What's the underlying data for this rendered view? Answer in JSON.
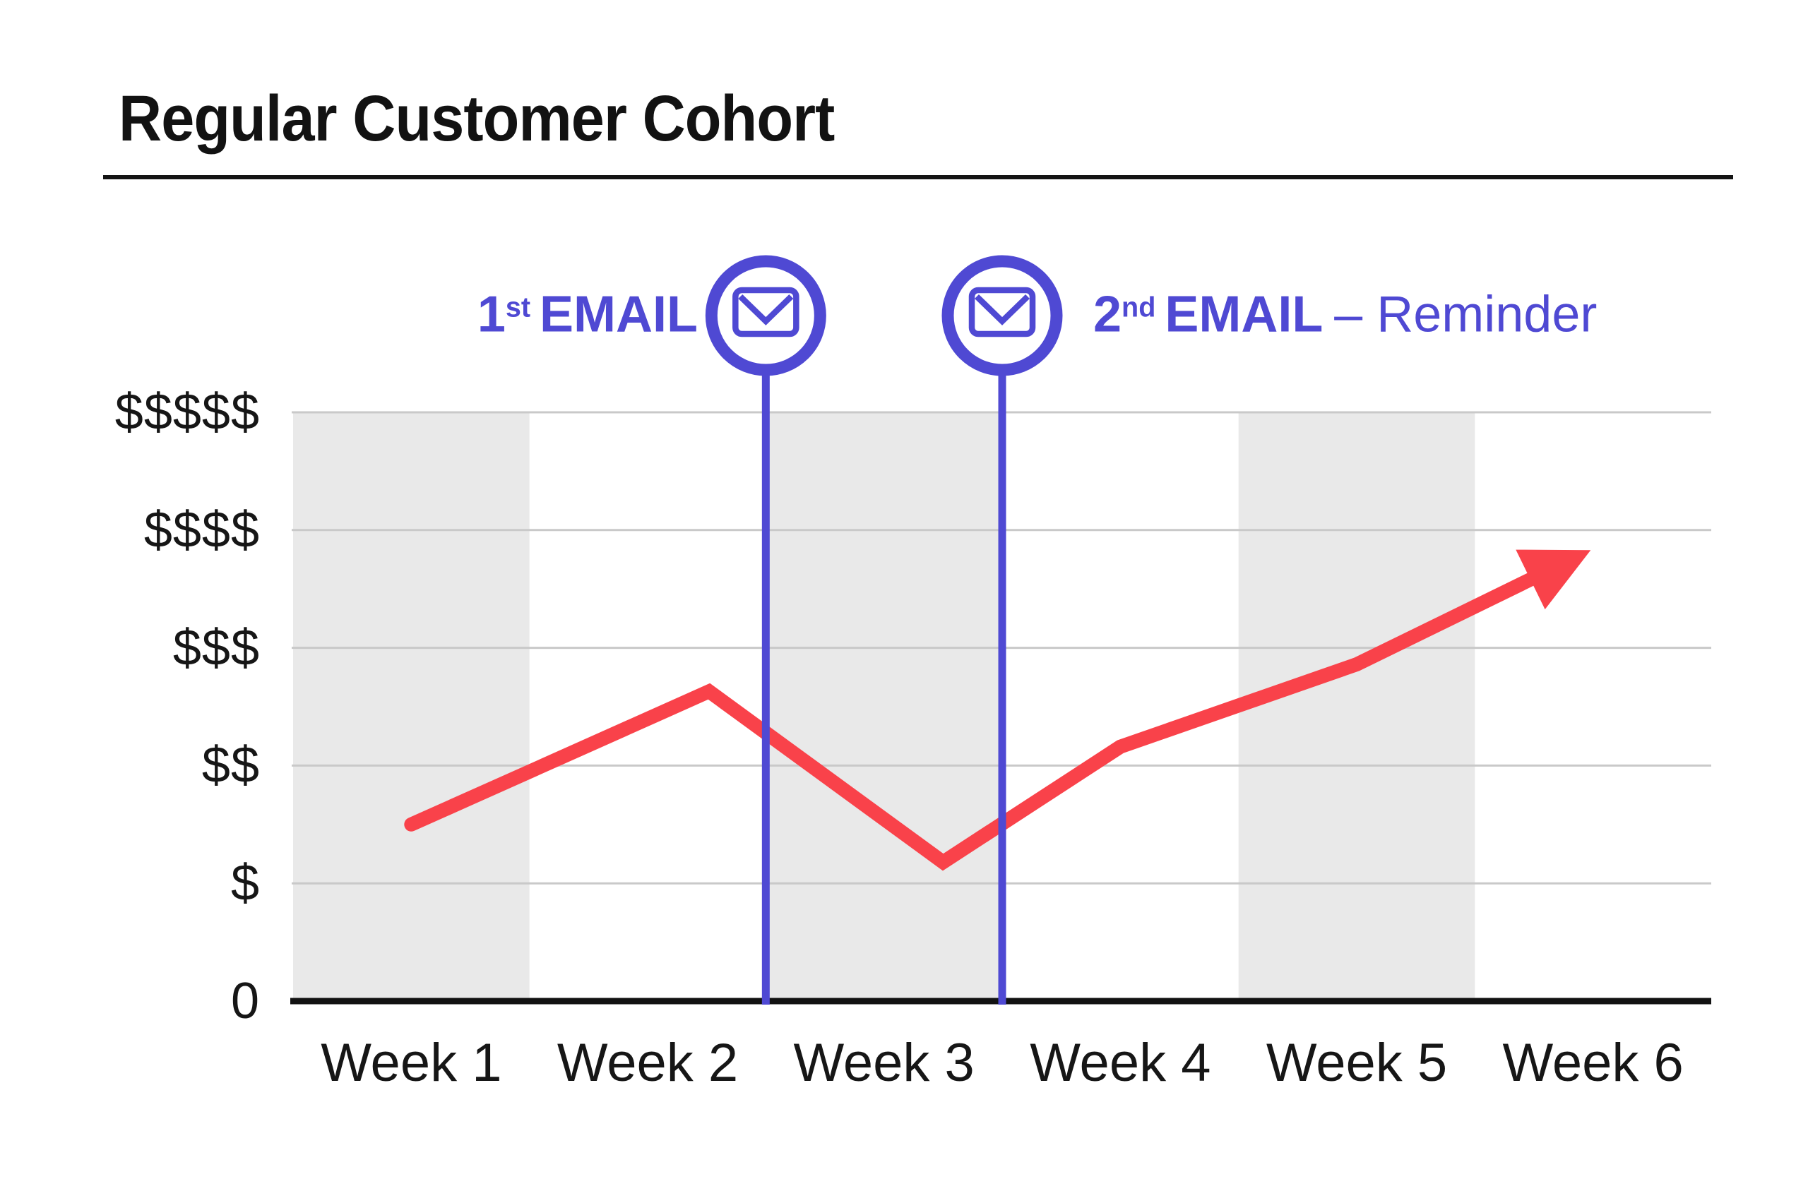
{
  "page": {
    "background": "#ffffff"
  },
  "header": {
    "title": "Regular Customer Cohort"
  },
  "annotations": {
    "email1": {
      "number": "1",
      "ordinal": "st",
      "word": "EMAIL"
    },
    "email2": {
      "number": "2",
      "ordinal": "nd",
      "word": "EMAIL",
      "suffix": "– Reminder"
    }
  },
  "colors": {
    "line": "#f9424a",
    "accent": "#4f49d3",
    "band": "#e9e9e9",
    "gridline": "#c9c9c9",
    "axis": "#121212",
    "text": "#161616",
    "circle_fill": "#ffffff"
  },
  "chart_data": {
    "type": "line",
    "title": "Regular Customer Cohort",
    "x_categories": [
      "Week 1",
      "Week 2",
      "Week 3",
      "Week 4",
      "Week 5",
      "Week 6"
    ],
    "y_tick_labels_bottom_to_top": [
      "0",
      "$",
      "$$",
      "$$$",
      "$$$$",
      "$$$$$"
    ],
    "ylim": [
      0,
      5
    ],
    "grid": true,
    "shaded_week_columns": [
      1,
      3,
      5
    ],
    "series": [
      {
        "name": "customer-spend",
        "color": "#f9424a",
        "x_weeks": [
          1.0,
          2.26,
          3.25,
          4.0,
          5.0,
          5.99
        ],
        "y_dollar_units": [
          1.5,
          2.63,
          1.18,
          2.16,
          2.86,
          3.83
        ],
        "line_end": "arrow"
      }
    ],
    "events": [
      {
        "label": "1st EMAIL",
        "x_weeks": 2.5,
        "icon": "envelope-icon"
      },
      {
        "label": "2nd EMAIL – Reminder",
        "x_weeks": 3.5,
        "icon": "envelope-icon"
      }
    ]
  }
}
